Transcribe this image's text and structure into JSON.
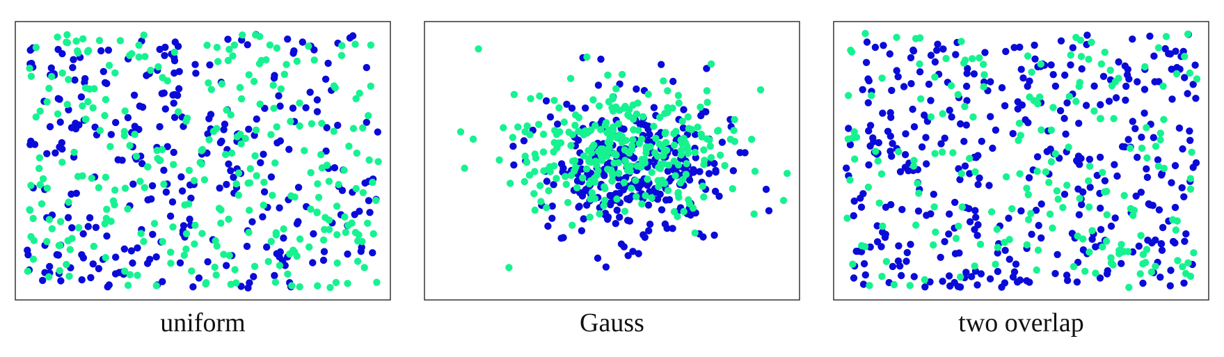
{
  "colors": {
    "blue": "#0b0bd8",
    "green": "#17f291"
  },
  "chart_data": [
    {
      "type": "scatter",
      "title": "uniform",
      "xlim": [
        0,
        1
      ],
      "ylim": [
        0,
        1
      ],
      "grid": false,
      "legend": "none",
      "series": [
        {
          "color": "blue",
          "distribution": "uniform",
          "n": 300,
          "seed": 11
        },
        {
          "color": "green",
          "distribution": "uniform",
          "n": 300,
          "seed": 23
        }
      ]
    },
    {
      "type": "scatter",
      "title": "Gauss",
      "xlim": [
        0,
        1
      ],
      "ylim": [
        0,
        1
      ],
      "grid": false,
      "legend": "none",
      "series": [
        {
          "color": "blue",
          "distribution": "gauss",
          "n": 300,
          "mean": [
            0.57,
            0.47
          ],
          "std": [
            0.13,
            0.14
          ],
          "seed": 37
        },
        {
          "color": "green",
          "distribution": "gauss",
          "n": 300,
          "mean": [
            0.53,
            0.55
          ],
          "std": [
            0.16,
            0.14
          ],
          "seed": 41
        }
      ]
    },
    {
      "type": "scatter",
      "title": "two overlap",
      "xlim": [
        0,
        1
      ],
      "ylim": [
        0,
        1
      ],
      "grid": false,
      "legend": "none",
      "series": [
        {
          "color": "blue",
          "distribution": "uniform",
          "n": 380,
          "seed": 53
        },
        {
          "color": "green",
          "distribution": "uniform",
          "n": 200,
          "seed": 67
        }
      ]
    }
  ]
}
